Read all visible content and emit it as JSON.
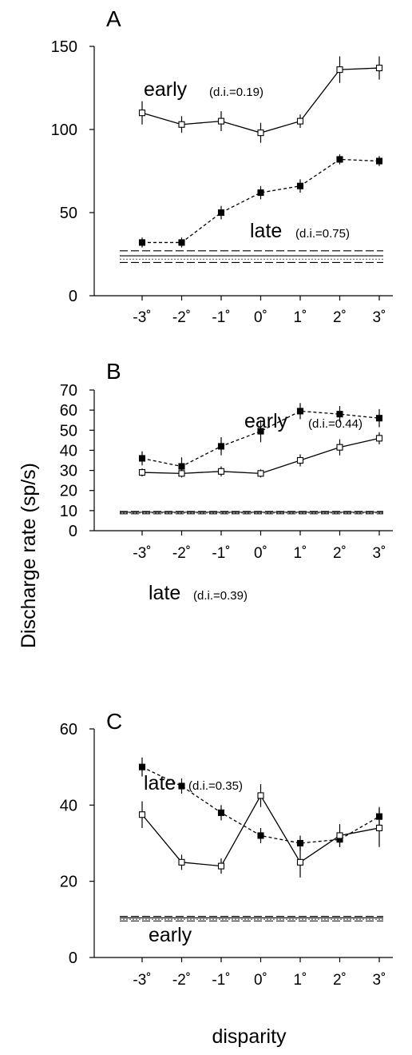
{
  "figure": {
    "ylabel": "Discharge rate (sp/s)",
    "xlabel": "disparity"
  },
  "chart_data": [
    {
      "type": "line",
      "panel": "A",
      "categories": [
        "-3˚",
        "-2˚",
        "-1˚",
        "0˚",
        "1˚",
        "2˚",
        "3˚"
      ],
      "x": [
        -3,
        -2,
        -1,
        0,
        1,
        2,
        3
      ],
      "ylim": [
        0,
        150
      ],
      "yticks": [
        0,
        50,
        100,
        150
      ],
      "series": [
        {
          "name": "early",
          "annotation": "(d.i.=0.19)",
          "marker": "open-square",
          "line": "solid",
          "values": [
            110,
            103,
            105,
            98,
            105,
            136,
            137
          ],
          "errors": [
            7,
            5,
            6,
            6,
            4,
            8,
            7
          ]
        },
        {
          "name": "late",
          "annotation": "(d.i.=0.75)",
          "marker": "filled-square",
          "line": "dashed",
          "values": [
            32,
            32,
            50,
            62,
            66,
            82,
            81
          ],
          "errors": [
            3,
            3,
            4,
            4,
            4,
            3,
            3
          ]
        }
      ],
      "spontaneous": [
        27,
        24,
        22,
        20
      ]
    },
    {
      "type": "line",
      "panel": "B",
      "categories": [
        "-3˚",
        "-2˚",
        "-1˚",
        "0˚",
        "1˚",
        "2˚",
        "3˚"
      ],
      "x": [
        -3,
        -2,
        -1,
        0,
        1,
        2,
        3
      ],
      "ylim": [
        0,
        70
      ],
      "yticks": [
        0,
        10,
        20,
        30,
        40,
        50,
        60,
        70
      ],
      "series": [
        {
          "name": "early",
          "annotation": "(d.i.=0.44)",
          "marker": "filled-square",
          "line": "dashed",
          "values": [
            36,
            32,
            42,
            49.5,
            59.5,
            58,
            56
          ],
          "errors": [
            3.5,
            4.5,
            4.5,
            5.5,
            4,
            4,
            4.5
          ]
        },
        {
          "name": "late",
          "annotation": "(d.i.=0.39)",
          "marker": "open-square",
          "line": "solid",
          "values": [
            29,
            28.5,
            29.5,
            28.5,
            35,
            41.5,
            46
          ],
          "errors": [
            2,
            2,
            2.5,
            2,
            3,
            4,
            3
          ]
        }
      ],
      "spontaneous": [
        9.6,
        9.2,
        8.8,
        8.4
      ]
    },
    {
      "type": "line",
      "panel": "C",
      "categories": [
        "-3˚",
        "-2˚",
        "-1˚",
        "0˚",
        "1˚",
        "2˚",
        "3˚"
      ],
      "x": [
        -3,
        -2,
        -1,
        0,
        1,
        2,
        3
      ],
      "ylim": [
        0,
        60
      ],
      "yticks": [
        0,
        20,
        40,
        60
      ],
      "series": [
        {
          "name": "late",
          "annotation": "(d.i.=0.35)",
          "marker": "filled-square",
          "line": "dashed",
          "values": [
            50,
            45,
            38,
            32,
            30,
            31,
            37
          ],
          "errors": [
            2.5,
            2,
            2,
            2,
            2,
            2,
            2.5
          ]
        },
        {
          "name": "early",
          "annotation": "",
          "marker": "open-square",
          "line": "solid",
          "values": [
            37.5,
            25,
            24,
            42.5,
            25,
            32,
            34
          ],
          "errors": [
            3.5,
            2,
            2,
            3,
            4,
            3,
            5
          ]
        }
      ],
      "spontaneous": [
        10.8,
        10.4,
        10.0,
        9.6
      ]
    }
  ]
}
